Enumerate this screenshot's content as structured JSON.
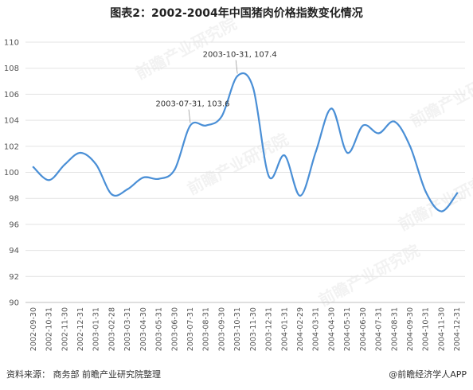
{
  "title": "图表2：2002-2004年中国猪肉价格指数变化情况",
  "source": "资料来源：  商务部 前瞻产业研究院整理",
  "brand": "@前瞻经济学人APP",
  "watermark": "前瞻产业研究院",
  "colors": {
    "line": "#4a8fd6",
    "grid": "#e3e3e3",
    "axis": "#bfbfbf"
  },
  "chart_data": {
    "type": "line",
    "x": [
      "2002-09-30",
      "2002-10-31",
      "2002-11-30",
      "2002-12-31",
      "2003-01-31",
      "2003-02-28",
      "2003-03-31",
      "2003-04-30",
      "2003-05-31",
      "2003-06-30",
      "2003-07-31",
      "2003-08-31",
      "2003-09-30",
      "2003-10-31",
      "2003-11-30",
      "2003-12-31",
      "2004-01-31",
      "2004-02-29",
      "2004-03-31",
      "2004-04-30",
      "2004-05-31",
      "2004-06-30",
      "2004-07-31",
      "2004-08-31",
      "2004-09-30",
      "2004-10-31",
      "2004-11-30",
      "2004-12-31"
    ],
    "values": [
      100.4,
      99.4,
      100.6,
      101.5,
      100.6,
      98.3,
      98.7,
      99.6,
      99.5,
      100.2,
      103.6,
      103.6,
      104.3,
      107.4,
      106.5,
      99.7,
      101.3,
      98.2,
      101.6,
      104.9,
      101.5,
      103.6,
      103.0,
      103.9,
      102.0,
      98.5,
      97.0,
      98.4
    ],
    "ylim": [
      90,
      110
    ],
    "yticks": [
      90,
      92,
      94,
      96,
      98,
      100,
      102,
      104,
      106,
      108,
      110
    ],
    "grid": true,
    "annotations": [
      {
        "index": 10,
        "text": "2003-07-31, 103.6"
      },
      {
        "index": 13,
        "text": "2003-10-31, 107.4"
      }
    ]
  }
}
